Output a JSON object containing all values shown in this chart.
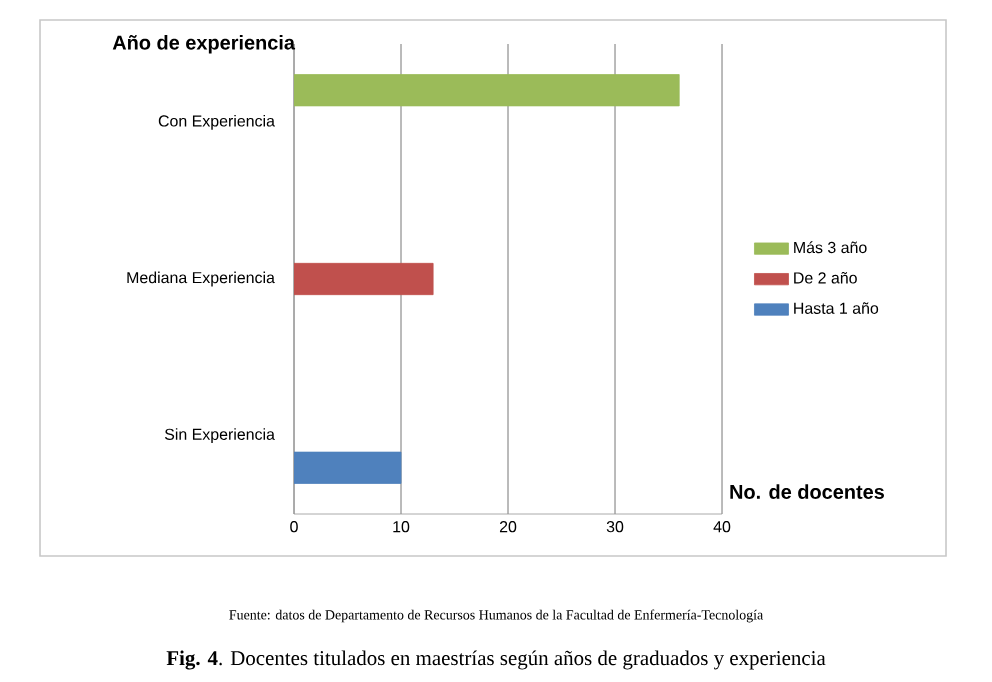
{
  "chart_data": {
    "type": "bar",
    "orientation": "horizontal",
    "xlabel": "No. de docentes",
    "ylabel": "Año de experiencia",
    "categories": [
      "Con Experiencia",
      "Mediana Experiencia",
      "Sin Experiencia"
    ],
    "series": [
      {
        "name": "Más 3 año",
        "color": "#9bbb59",
        "values": [
          36,
          null,
          null
        ]
      },
      {
        "name": "De 2 año",
        "color": "#c0504d",
        "values": [
          null,
          13,
          null
        ]
      },
      {
        "name": "Hasta 1 año",
        "color": "#4f81bd",
        "values": [
          null,
          null,
          10
        ]
      }
    ],
    "xlim": [
      0,
      40
    ],
    "xticks": [
      0,
      10,
      20,
      30,
      40
    ],
    "grid": "x",
    "legend": "right",
    "annotations": [
      "Fuente: datos de Departamento de Recursos Humanos de la Facultad de Enfermería-Tecnología",
      "**Fig. 4**. Docentes titulados en maestrías según años de graduados y experiencia"
    ]
  }
}
